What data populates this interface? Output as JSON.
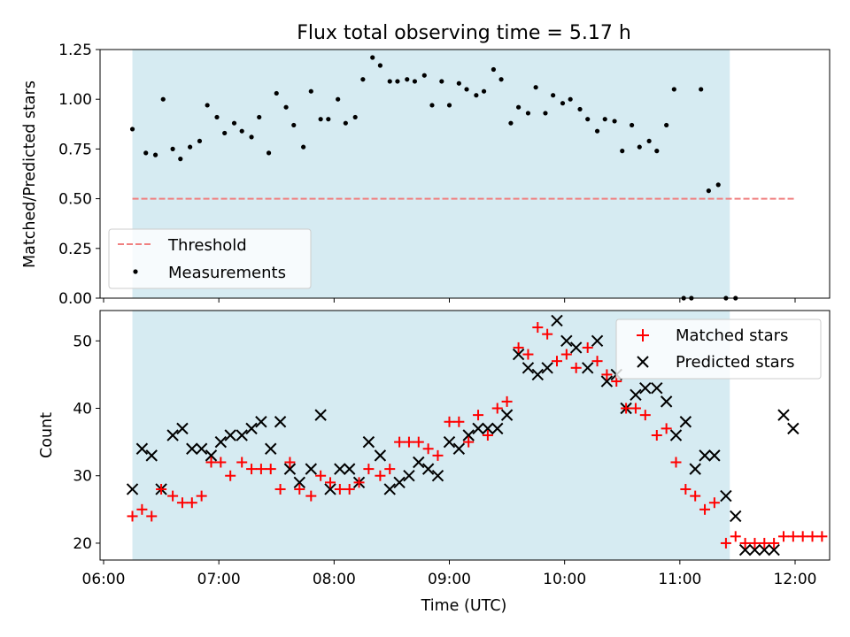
{
  "chart_data": [
    {
      "type": "scatter",
      "title": "Flux total observing time = 5.17 h",
      "xlabel": "",
      "ylabel": "Matched/Predicted stars",
      "xlim": [
        "06:00",
        "12:00"
      ],
      "ylim": [
        0,
        1.25
      ],
      "yticks": [
        "0.00",
        "0.25",
        "0.50",
        "0.75",
        "1.00",
        "1.25"
      ],
      "shaded_interval": [
        "06:15",
        "11:26"
      ],
      "legend_position": "lower-left",
      "threshold": {
        "name": "Threshold",
        "value": 0.5,
        "x_range": [
          "06:15",
          "12:00"
        ],
        "color": "#f08080",
        "style": "dashed"
      },
      "series": [
        {
          "name": "Measurements",
          "marker": "dot",
          "color": "#000000",
          "points": [
            [
              "06:15",
              0.85
            ],
            [
              "06:22",
              0.73
            ],
            [
              "06:27",
              0.72
            ],
            [
              "06:31",
              1.0
            ],
            [
              "06:36",
              0.75
            ],
            [
              "06:40",
              0.7
            ],
            [
              "06:45",
              0.76
            ],
            [
              "06:50",
              0.79
            ],
            [
              "06:54",
              0.97
            ],
            [
              "06:59",
              0.91
            ],
            [
              "07:03",
              0.83
            ],
            [
              "07:08",
              0.88
            ],
            [
              "07:12",
              0.84
            ],
            [
              "07:17",
              0.81
            ],
            [
              "07:21",
              0.91
            ],
            [
              "07:26",
              0.73
            ],
            [
              "07:30",
              1.03
            ],
            [
              "07:35",
              0.96
            ],
            [
              "07:39",
              0.87
            ],
            [
              "07:44",
              0.76
            ],
            [
              "07:48",
              1.04
            ],
            [
              "07:53",
              0.9
            ],
            [
              "07:57",
              0.9
            ],
            [
              "08:02",
              1.0
            ],
            [
              "08:06",
              0.88
            ],
            [
              "08:11",
              0.91
            ],
            [
              "08:15",
              1.1
            ],
            [
              "08:20",
              1.21
            ],
            [
              "08:24",
              1.17
            ],
            [
              "08:29",
              1.09
            ],
            [
              "08:33",
              1.09
            ],
            [
              "08:38",
              1.1
            ],
            [
              "08:42",
              1.09
            ],
            [
              "08:47",
              1.12
            ],
            [
              "08:51",
              0.97
            ],
            [
              "08:56",
              1.09
            ],
            [
              "09:00",
              0.97
            ],
            [
              "09:05",
              1.08
            ],
            [
              "09:09",
              1.05
            ],
            [
              "09:14",
              1.02
            ],
            [
              "09:18",
              1.04
            ],
            [
              "09:23",
              1.15
            ],
            [
              "09:27",
              1.1
            ],
            [
              "09:32",
              0.88
            ],
            [
              "09:36",
              0.96
            ],
            [
              "09:41",
              0.93
            ],
            [
              "09:45",
              1.06
            ],
            [
              "09:50",
              0.93
            ],
            [
              "09:54",
              1.02
            ],
            [
              "09:59",
              0.98
            ],
            [
              "10:03",
              1.0
            ],
            [
              "10:08",
              0.95
            ],
            [
              "10:12",
              0.9
            ],
            [
              "10:17",
              0.84
            ],
            [
              "10:21",
              0.9
            ],
            [
              "10:26",
              0.89
            ],
            [
              "10:30",
              0.74
            ],
            [
              "10:35",
              0.87
            ],
            [
              "10:39",
              0.76
            ],
            [
              "10:44",
              0.79
            ],
            [
              "10:48",
              0.74
            ],
            [
              "10:53",
              0.87
            ],
            [
              "10:57",
              1.05
            ],
            [
              "11:02",
              0.0
            ],
            [
              "11:06",
              0.0
            ],
            [
              "11:11",
              1.05
            ],
            [
              "11:15",
              0.54
            ],
            [
              "11:20",
              0.57
            ],
            [
              "11:24",
              0.0
            ],
            [
              "11:29",
              0.0
            ]
          ]
        }
      ]
    },
    {
      "type": "scatter",
      "title": "",
      "xlabel": "Time (UTC)",
      "ylabel": "Count",
      "xlim": [
        "06:00",
        "12:00"
      ],
      "ylim": [
        17.5,
        54.5
      ],
      "xticks": [
        "06:00",
        "07:00",
        "08:00",
        "09:00",
        "10:00",
        "11:00",
        "12:00"
      ],
      "yticks": [
        20,
        30,
        40,
        50
      ],
      "shaded_interval": [
        "06:15",
        "11:26"
      ],
      "legend_position": "upper-right",
      "series": [
        {
          "name": "Matched stars",
          "marker": "plus",
          "color": "#ff0000",
          "points": [
            [
              "06:15",
              24
            ],
            [
              "06:20",
              25
            ],
            [
              "06:25",
              24
            ],
            [
              "06:30",
              28
            ],
            [
              "06:36",
              27
            ],
            [
              "06:41",
              26
            ],
            [
              "06:46",
              26
            ],
            [
              "06:51",
              27
            ],
            [
              "06:56",
              32
            ],
            [
              "07:01",
              32
            ],
            [
              "07:06",
              30
            ],
            [
              "07:12",
              32
            ],
            [
              "07:17",
              31
            ],
            [
              "07:22",
              31
            ],
            [
              "07:27",
              31
            ],
            [
              "07:32",
              28
            ],
            [
              "07:37",
              32
            ],
            [
              "07:42",
              28
            ],
            [
              "07:48",
              27
            ],
            [
              "07:53",
              30
            ],
            [
              "07:58",
              29
            ],
            [
              "08:03",
              28
            ],
            [
              "08:08",
              28
            ],
            [
              "08:13",
              29
            ],
            [
              "08:18",
              31
            ],
            [
              "08:24",
              30
            ],
            [
              "08:29",
              31
            ],
            [
              "08:34",
              35
            ],
            [
              "08:39",
              35
            ],
            [
              "08:44",
              35
            ],
            [
              "08:49",
              34
            ],
            [
              "08:54",
              33
            ],
            [
              "09:00",
              38
            ],
            [
              "09:05",
              38
            ],
            [
              "09:10",
              35
            ],
            [
              "09:15",
              39
            ],
            [
              "09:20",
              36
            ],
            [
              "09:25",
              40
            ],
            [
              "09:30",
              41
            ],
            [
              "09:36",
              49
            ],
            [
              "09:41",
              48
            ],
            [
              "09:46",
              52
            ],
            [
              "09:51",
              51
            ],
            [
              "09:56",
              47
            ],
            [
              "10:01",
              48
            ],
            [
              "10:06",
              46
            ],
            [
              "10:12",
              49
            ],
            [
              "10:17",
              47
            ],
            [
              "10:22",
              45
            ],
            [
              "10:27",
              44
            ],
            [
              "10:32",
              40
            ],
            [
              "10:37",
              40
            ],
            [
              "10:42",
              39
            ],
            [
              "10:48",
              36
            ],
            [
              "10:53",
              37
            ],
            [
              "10:58",
              32
            ],
            [
              "11:03",
              28
            ],
            [
              "11:08",
              27
            ],
            [
              "11:13",
              25
            ],
            [
              "11:18",
              26
            ],
            [
              "11:24",
              20
            ],
            [
              "11:29",
              21
            ],
            [
              "11:34",
              20
            ],
            [
              "11:39",
              20
            ],
            [
              "11:44",
              20
            ],
            [
              "11:49",
              20
            ],
            [
              "11:54",
              21
            ],
            [
              "11:59",
              21
            ],
            [
              "12:04",
              21
            ],
            [
              "12:09",
              21
            ],
            [
              "12:14",
              21
            ]
          ]
        },
        {
          "name": "Predicted stars",
          "marker": "x",
          "color": "#000000",
          "points": [
            [
              "06:15",
              28
            ],
            [
              "06:20",
              34
            ],
            [
              "06:25",
              33
            ],
            [
              "06:30",
              28
            ],
            [
              "06:36",
              36
            ],
            [
              "06:41",
              37
            ],
            [
              "06:46",
              34
            ],
            [
              "06:51",
              34
            ],
            [
              "06:56",
              33
            ],
            [
              "07:01",
              35
            ],
            [
              "07:06",
              36
            ],
            [
              "07:12",
              36
            ],
            [
              "07:17",
              37
            ],
            [
              "07:22",
              38
            ],
            [
              "07:27",
              34
            ],
            [
              "07:32",
              38
            ],
            [
              "07:37",
              31
            ],
            [
              "07:42",
              29
            ],
            [
              "07:48",
              31
            ],
            [
              "07:53",
              39
            ],
            [
              "07:58",
              28
            ],
            [
              "08:03",
              31
            ],
            [
              "08:08",
              31
            ],
            [
              "08:13",
              29
            ],
            [
              "08:18",
              35
            ],
            [
              "08:24",
              33
            ],
            [
              "08:29",
              28
            ],
            [
              "08:34",
              29
            ],
            [
              "08:39",
              30
            ],
            [
              "08:44",
              32
            ],
            [
              "08:49",
              31
            ],
            [
              "08:54",
              30
            ],
            [
              "09:00",
              35
            ],
            [
              "09:05",
              34
            ],
            [
              "09:10",
              36
            ],
            [
              "09:15",
              37
            ],
            [
              "09:20",
              37
            ],
            [
              "09:25",
              37
            ],
            [
              "09:30",
              39
            ],
            [
              "09:36",
              48
            ],
            [
              "09:41",
              46
            ],
            [
              "09:46",
              45
            ],
            [
              "09:51",
              46
            ],
            [
              "09:56",
              53
            ],
            [
              "10:01",
              50
            ],
            [
              "10:06",
              49
            ],
            [
              "10:12",
              46
            ],
            [
              "10:17",
              50
            ],
            [
              "10:22",
              44
            ],
            [
              "10:27",
              45
            ],
            [
              "10:32",
              40
            ],
            [
              "10:37",
              42
            ],
            [
              "10:42",
              43
            ],
            [
              "10:48",
              43
            ],
            [
              "10:53",
              41
            ],
            [
              "10:58",
              36
            ],
            [
              "11:03",
              38
            ],
            [
              "11:08",
              31
            ],
            [
              "11:13",
              33
            ],
            [
              "11:18",
              33
            ],
            [
              "11:24",
              27
            ],
            [
              "11:29",
              24
            ],
            [
              "11:34",
              19
            ],
            [
              "11:39",
              19
            ],
            [
              "11:44",
              19
            ],
            [
              "11:49",
              19
            ],
            [
              "11:54",
              39
            ],
            [
              "11:59",
              37
            ]
          ]
        }
      ]
    }
  ],
  "colors": {
    "shade": "#add8e6",
    "threshold": "#f08080",
    "matched": "#ff0000",
    "predicted": "#000000",
    "measurement": "#000000"
  }
}
